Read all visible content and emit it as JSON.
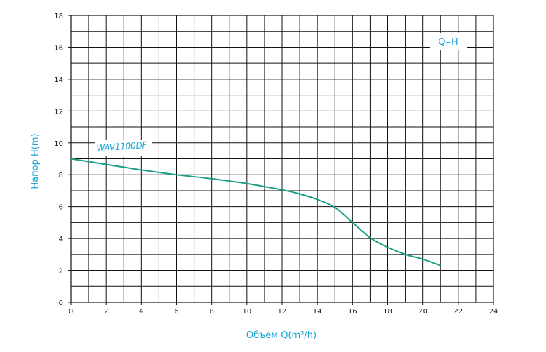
{
  "chart_data": {
    "type": "line",
    "title": "",
    "xlabel": "Объем Q(m³/h)",
    "ylabel": "Напор H(m)",
    "xlim": [
      0,
      24
    ],
    "ylim": [
      0,
      18
    ],
    "x_ticks": [
      0,
      2,
      4,
      6,
      8,
      10,
      12,
      14,
      16,
      18,
      20,
      22,
      24
    ],
    "y_ticks": [
      0,
      2,
      4,
      6,
      8,
      10,
      12,
      14,
      16,
      18
    ],
    "grid": true,
    "legend": "Q–H",
    "legend_position": "top-right",
    "series": [
      {
        "name": "WAV1100DF",
        "color": "#1a9e86",
        "x": [
          0,
          2,
          4,
          6,
          8,
          10,
          12,
          13,
          14,
          15,
          16,
          17,
          18,
          19,
          20,
          21
        ],
        "y": [
          9.0,
          8.65,
          8.3,
          8.0,
          7.75,
          7.45,
          7.05,
          6.8,
          6.45,
          5.95,
          5.0,
          4.05,
          3.45,
          3.0,
          2.7,
          2.3
        ]
      }
    ]
  }
}
